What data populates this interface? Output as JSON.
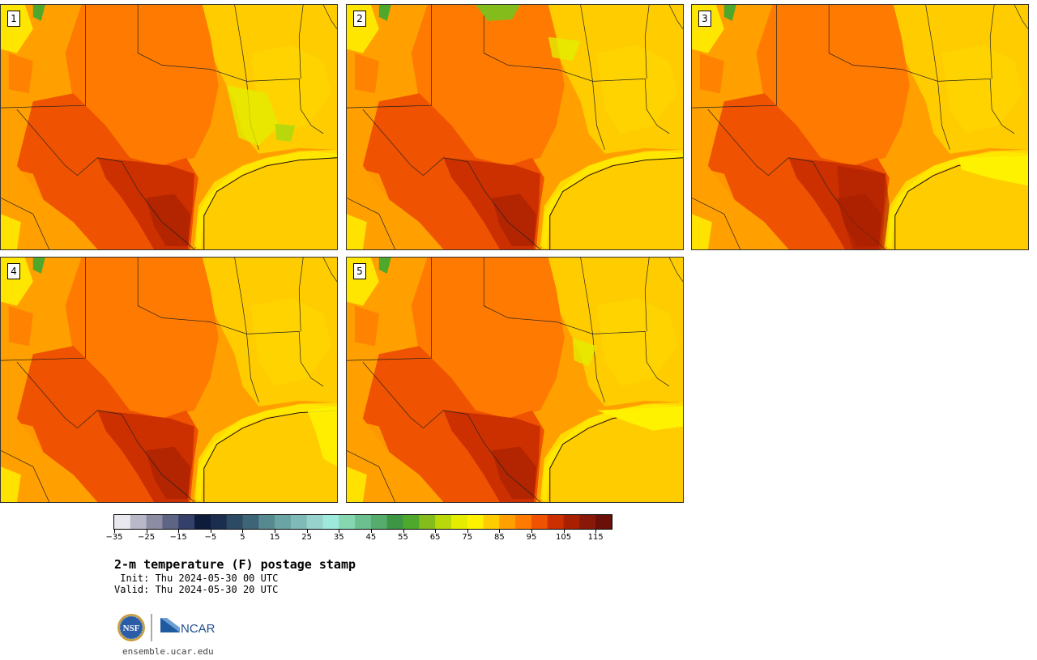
{
  "members": [
    {
      "label": "1"
    },
    {
      "label": "2"
    },
    {
      "label": "3"
    },
    {
      "label": "4"
    },
    {
      "label": "5"
    }
  ],
  "colorbar": {
    "ticks": [
      "−35",
      "−25",
      "−15",
      "−5",
      "5",
      "15",
      "25",
      "35",
      "45",
      "55",
      "65",
      "75",
      "85",
      "95",
      "105",
      "115"
    ],
    "colors": [
      "#e8e8ee",
      "#b8b8c8",
      "#8c8ca4",
      "#5e6484",
      "#34406a",
      "#0e1c3c",
      "#1c2e50",
      "#2c4a64",
      "#3e6478",
      "#568a90",
      "#6aa4a4",
      "#80bab8",
      "#98d2cc",
      "#9ee8dc",
      "#86d6b0",
      "#6cc090",
      "#56ac6c",
      "#3c9644",
      "#4ea82c",
      "#84bc1c",
      "#b8d80c",
      "#e4ec00",
      "#fff200",
      "#ffcc00",
      "#ff9f00",
      "#ff7a00",
      "#ef5200",
      "#cc3000",
      "#a82000",
      "#8a1808",
      "#6a1008"
    ]
  },
  "title": "2-m temperature (F) postage stamp",
  "init": " Init: Thu 2024-05-30 00 UTC",
  "valid": "Valid: Thu 2024-05-30 20 UTC",
  "logos": {
    "nsf": "NSF",
    "ncar": "NCAR"
  },
  "url": "ensemble.ucar.edu"
}
